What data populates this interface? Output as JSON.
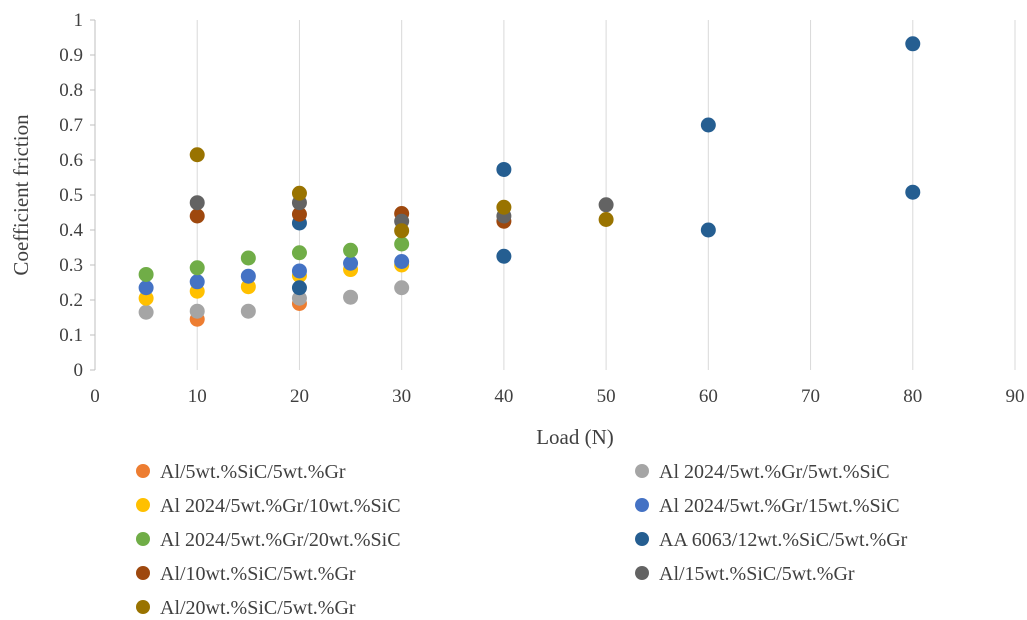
{
  "chart_data": {
    "type": "scatter",
    "title": "",
    "xlabel": "Load (N)",
    "ylabel": "Coefficient friction",
    "xlim": [
      0,
      90
    ],
    "ylim": [
      0,
      1
    ],
    "xticks": [
      0,
      10,
      20,
      30,
      40,
      50,
      60,
      70,
      80,
      90
    ],
    "yticks": [
      0,
      0.1,
      0.2,
      0.3,
      0.4,
      0.5,
      0.6,
      0.7,
      0.8,
      0.9,
      1
    ],
    "xtick_labels": [
      "0",
      "10",
      "20",
      "30",
      "40",
      "50",
      "60",
      "70",
      "80",
      "90"
    ],
    "ytick_labels": [
      "0",
      "0.1",
      "0.2",
      "0.3",
      "0.4",
      "0.5",
      "0.6",
      "0.7",
      "0.8",
      "0.9",
      "1"
    ],
    "grid": "vertical gridlines",
    "legend_position": "bottom",
    "series": [
      {
        "name": "Al/5wt.%SiC/5wt.%Gr",
        "color": "#ED7D31",
        "points": [
          [
            10,
            0.145
          ],
          [
            20,
            0.19
          ]
        ]
      },
      {
        "name": "Al 2024/5wt.%Gr/5wt.%SiC",
        "color": "#A5A5A5",
        "points": [
          [
            5,
            0.165
          ],
          [
            10,
            0.168
          ],
          [
            15,
            0.168
          ],
          [
            20,
            0.205
          ],
          [
            25,
            0.208
          ],
          [
            30,
            0.235
          ]
        ]
      },
      {
        "name": "Al 2024/5wt.%Gr/10wt.%SiC",
        "color": "#FFC000",
        "points": [
          [
            5,
            0.205
          ],
          [
            10,
            0.225
          ],
          [
            15,
            0.238
          ],
          [
            20,
            0.27
          ],
          [
            25,
            0.287
          ],
          [
            30,
            0.3
          ]
        ]
      },
      {
        "name": "Al 2024/5wt.%Gr/15wt.%SiC",
        "color": "#4472C4",
        "points": [
          [
            5,
            0.235
          ],
          [
            10,
            0.252
          ],
          [
            15,
            0.268
          ],
          [
            20,
            0.283
          ],
          [
            25,
            0.305
          ],
          [
            30,
            0.31
          ]
        ]
      },
      {
        "name": "Al 2024/5wt.%Gr/20wt.%SiC",
        "color": "#70AD47",
        "points": [
          [
            5,
            0.273
          ],
          [
            10,
            0.292
          ],
          [
            15,
            0.32
          ],
          [
            20,
            0.335
          ],
          [
            25,
            0.342
          ],
          [
            30,
            0.36
          ]
        ]
      },
      {
        "name": "AA 6063/12wt.%SiC/5wt.%Gr",
        "color": "#255E91",
        "points": [
          [
            20,
            0.42
          ],
          [
            20,
            0.235
          ],
          [
            40,
            0.573
          ],
          [
            40,
            0.325
          ],
          [
            60,
            0.7
          ],
          [
            60,
            0.4
          ],
          [
            80,
            0.932
          ],
          [
            80,
            0.508
          ]
        ]
      },
      {
        "name": "Al/10wt.%SiC/5wt.%Gr",
        "color": "#9E480E",
        "points": [
          [
            10,
            0.44
          ],
          [
            20,
            0.445
          ],
          [
            30,
            0.447
          ],
          [
            40,
            0.425
          ]
        ]
      },
      {
        "name": "Al/15wt.%SiC/5wt.%Gr",
        "color": "#636363",
        "points": [
          [
            10,
            0.478
          ],
          [
            20,
            0.478
          ],
          [
            30,
            0.425
          ],
          [
            40,
            0.44
          ],
          [
            50,
            0.472
          ]
        ]
      },
      {
        "name": "Al/20wt.%SiC/5wt.%Gr",
        "color": "#997300",
        "points": [
          [
            10,
            0.615
          ],
          [
            20,
            0.505
          ],
          [
            30,
            0.398
          ],
          [
            40,
            0.465
          ],
          [
            50,
            0.43
          ]
        ]
      }
    ]
  }
}
